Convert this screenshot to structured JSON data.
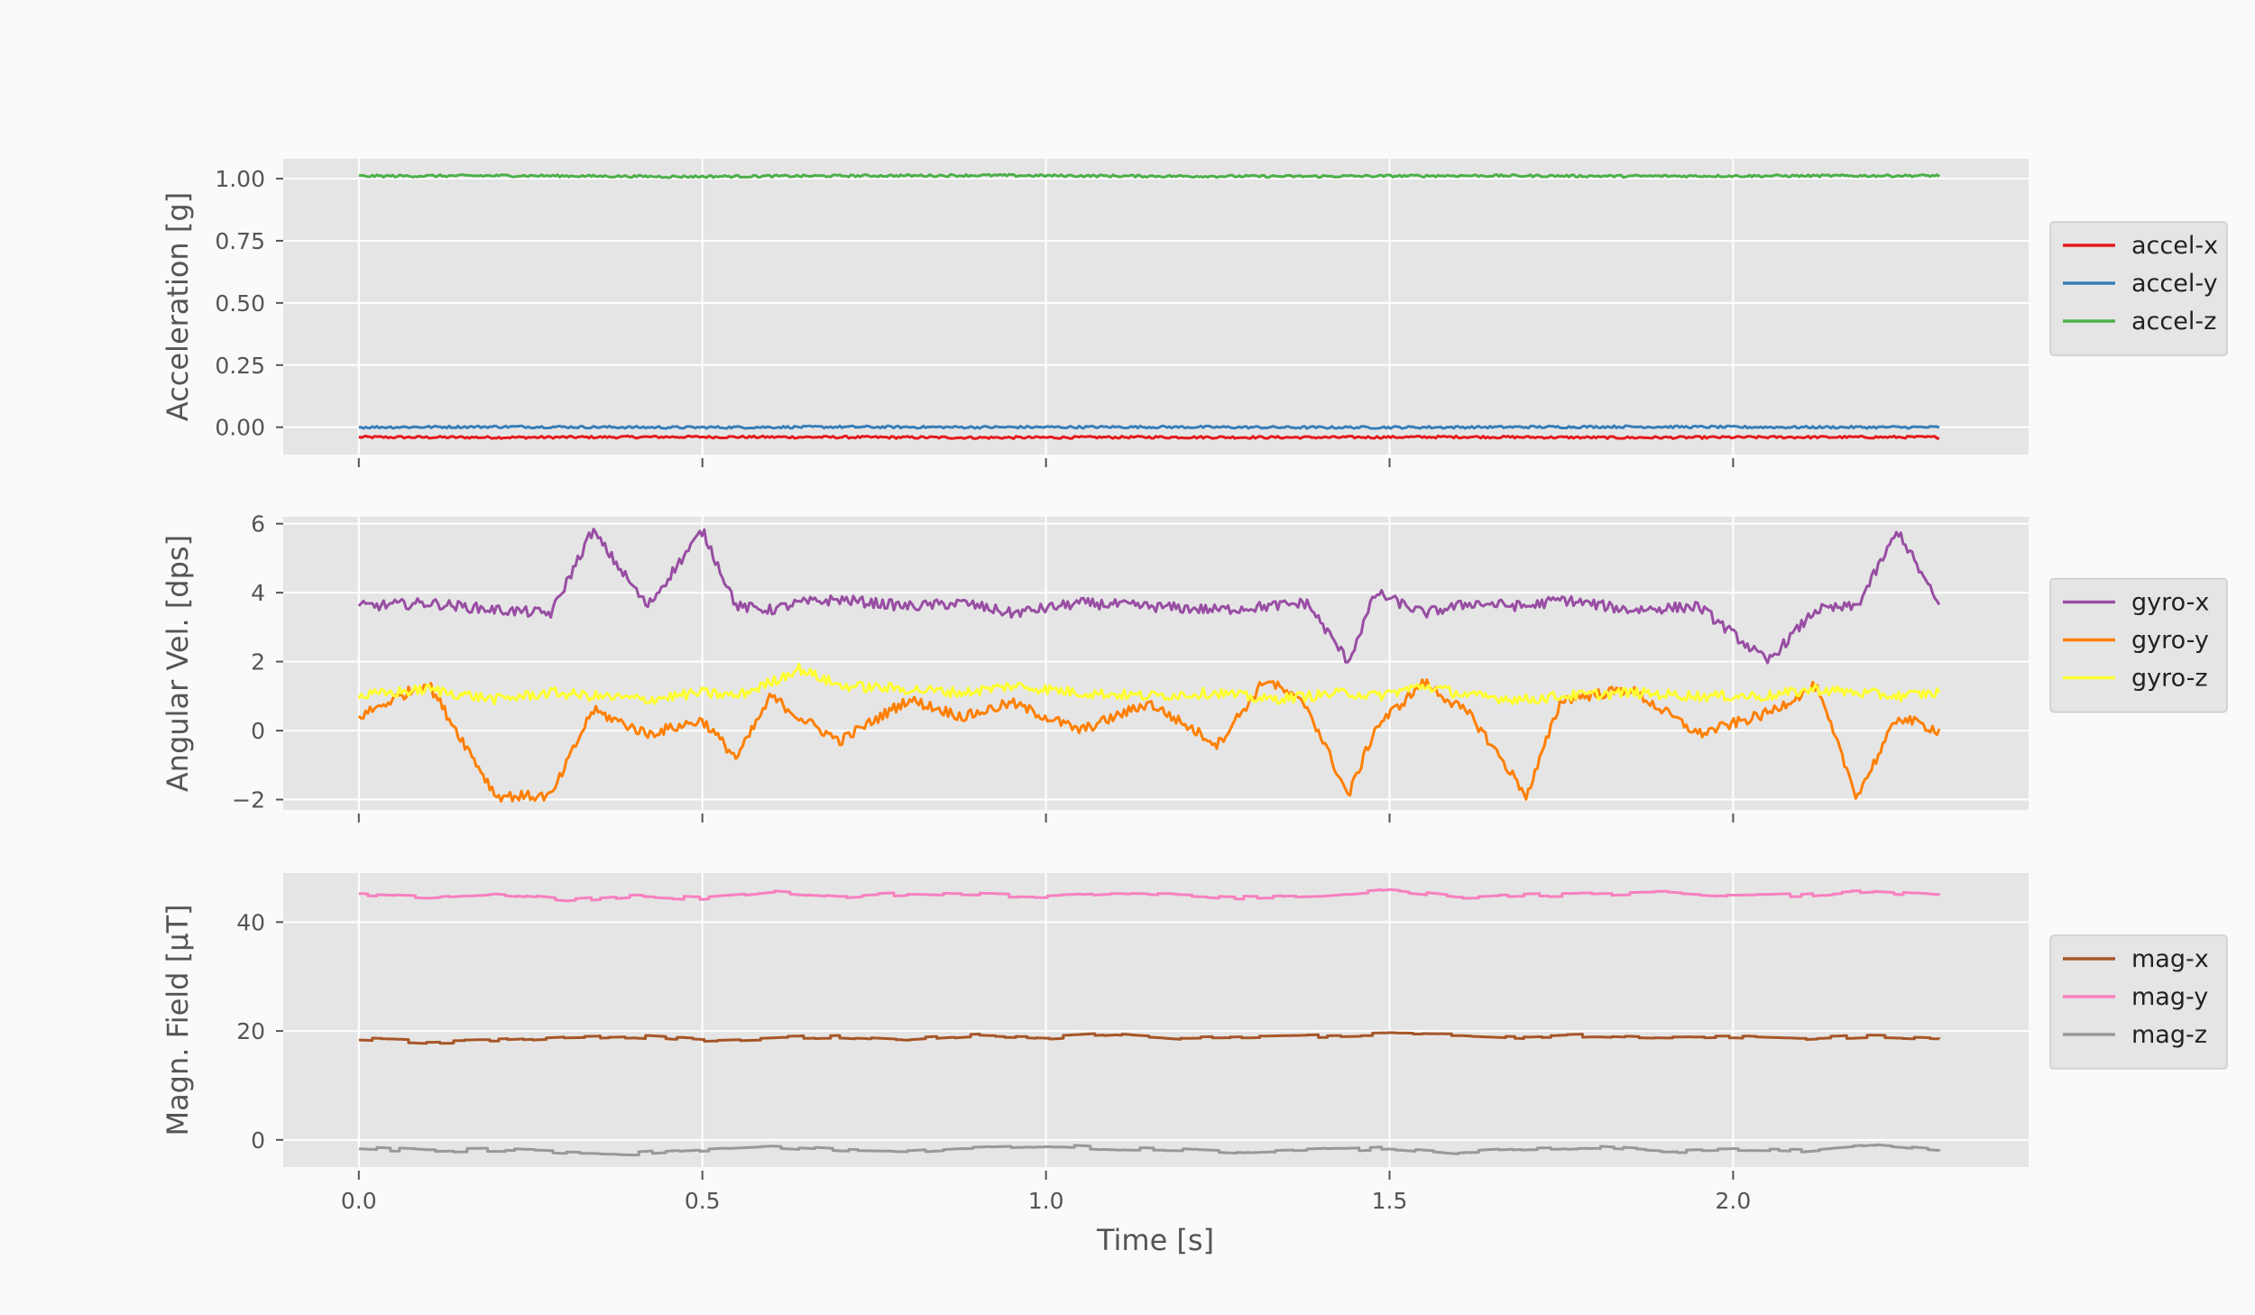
{
  "background": "#f9faf9",
  "plot_background": "#e5e5e5",
  "grid_color": "#ffffff",
  "chart_data": [
    {
      "type": "line",
      "ylabel": "Acceleration [g]",
      "xlim": [
        -0.11,
        2.43
      ],
      "ylim": [
        -0.11,
        1.08
      ],
      "yticks": [
        0.0,
        0.25,
        0.5,
        0.75,
        1.0
      ],
      "ytick_labels": [
        "0.00",
        "0.25",
        "0.50",
        "0.75",
        "1.00"
      ],
      "grid": true,
      "legend_position": "right",
      "x": [
        0.0,
        0.23,
        0.46,
        0.69,
        0.92,
        1.15,
        1.38,
        1.61,
        1.84,
        2.07,
        2.3
      ],
      "series": [
        {
          "name": "accel-x",
          "color": "#e41a1c",
          "values": [
            -0.04,
            -0.041,
            -0.039,
            -0.04,
            -0.042,
            -0.04,
            -0.041,
            -0.039,
            -0.042,
            -0.04,
            -0.04
          ]
        },
        {
          "name": "accel-y",
          "color": "#377eb8",
          "values": [
            0.0,
            0.002,
            -0.001,
            0.001,
            0.0,
            0.001,
            -0.001,
            0.0,
            0.002,
            0.0,
            0.0
          ]
        },
        {
          "name": "accel-z",
          "color": "#4daf4a",
          "values": [
            1.01,
            1.012,
            1.008,
            1.011,
            1.013,
            1.01,
            1.009,
            1.012,
            1.01,
            1.011,
            1.012
          ]
        }
      ]
    },
    {
      "type": "line",
      "ylabel": "Angular Vel. [dps]",
      "xlim": [
        -0.11,
        2.43
      ],
      "ylim": [
        -2.3,
        6.2
      ],
      "yticks": [
        -2,
        0,
        2,
        4,
        6
      ],
      "ytick_labels": [
        "−2",
        "0",
        "2",
        "4",
        "6"
      ],
      "grid": true,
      "legend_position": "right",
      "x": [
        0.0,
        0.1,
        0.2,
        0.28,
        0.34,
        0.42,
        0.5,
        0.55,
        0.6,
        0.64,
        0.7,
        0.8,
        0.88,
        0.95,
        1.05,
        1.15,
        1.25,
        1.32,
        1.38,
        1.44,
        1.48,
        1.55,
        1.62,
        1.7,
        1.75,
        1.85,
        1.95,
        2.05,
        2.12,
        2.18,
        2.24,
        2.3
      ],
      "series": [
        {
          "name": "gyro-x",
          "color": "#984ea3",
          "values": [
            3.6,
            3.7,
            3.5,
            3.4,
            5.8,
            3.6,
            5.8,
            3.6,
            3.5,
            3.7,
            3.8,
            3.6,
            3.7,
            3.4,
            3.7,
            3.6,
            3.5,
            3.6,
            3.7,
            2.0,
            4.0,
            3.4,
            3.7,
            3.6,
            3.8,
            3.5,
            3.6,
            2.0,
            3.5,
            3.6,
            5.8,
            3.6
          ]
        },
        {
          "name": "gyro-y",
          "color": "#ff7f00",
          "values": [
            0.4,
            1.4,
            -1.9,
            -1.9,
            0.6,
            -0.1,
            0.3,
            -0.8,
            1.0,
            0.4,
            -0.3,
            0.9,
            0.4,
            0.8,
            0.0,
            0.8,
            -0.4,
            1.5,
            0.7,
            -1.9,
            0.1,
            1.4,
            0.4,
            -1.9,
            0.9,
            1.2,
            -0.1,
            0.5,
            1.3,
            -1.9,
            0.4,
            0.0
          ]
        },
        {
          "name": "gyro-z",
          "color": "#ffff33",
          "values": [
            1.0,
            1.2,
            0.9,
            1.1,
            1.0,
            0.9,
            1.1,
            1.0,
            1.4,
            1.8,
            1.3,
            1.2,
            1.1,
            1.3,
            1.1,
            1.0,
            1.1,
            0.9,
            1.0,
            1.1,
            1.0,
            1.3,
            1.0,
            0.9,
            1.0,
            1.1,
            1.0,
            1.0,
            1.2,
            1.1,
            1.0,
            1.1
          ]
        }
      ]
    },
    {
      "type": "line",
      "xlabel": "Time [s]",
      "ylabel": "Magn. Field [μT]",
      "xlim": [
        -0.11,
        2.43
      ],
      "ylim": [
        -5,
        49
      ],
      "yticks": [
        0,
        20,
        40
      ],
      "ytick_labels": [
        "0",
        "20",
        "40"
      ],
      "xticks": [
        0.0,
        0.5,
        1.0,
        1.5,
        2.0
      ],
      "xtick_labels": [
        "0.0",
        "0.5",
        "1.0",
        "1.5",
        "2.0"
      ],
      "grid": true,
      "legend_position": "right",
      "x": [
        0.0,
        0.1,
        0.2,
        0.3,
        0.4,
        0.5,
        0.6,
        0.7,
        0.8,
        0.9,
        1.0,
        1.1,
        1.2,
        1.3,
        1.4,
        1.5,
        1.6,
        1.7,
        1.8,
        1.9,
        2.0,
        2.1,
        2.2,
        2.3
      ],
      "series": [
        {
          "name": "mag-x",
          "color": "#a65628",
          "values": [
            18.5,
            18.0,
            18.2,
            18.8,
            19.0,
            18.3,
            18.6,
            19.0,
            18.4,
            19.2,
            18.8,
            19.5,
            18.7,
            18.9,
            19.1,
            19.4,
            19.3,
            18.8,
            19.2,
            18.9,
            19.0,
            18.6,
            19.1,
            18.7
          ]
        },
        {
          "name": "mag-y",
          "color": "#f781bf",
          "values": [
            45.0,
            44.5,
            45.2,
            44.0,
            44.8,
            44.3,
            45.5,
            44.6,
            45.2,
            45.0,
            44.8,
            45.3,
            44.9,
            44.4,
            44.7,
            45.8,
            44.6,
            44.9,
            45.1,
            45.4,
            44.8,
            45.0,
            45.6,
            44.8
          ]
        },
        {
          "name": "mag-z",
          "color": "#999999",
          "values": [
            -1.5,
            -2.0,
            -1.8,
            -2.2,
            -2.5,
            -1.8,
            -1.2,
            -1.9,
            -2.1,
            -1.4,
            -1.0,
            -1.6,
            -1.8,
            -2.3,
            -1.9,
            -1.5,
            -2.4,
            -1.7,
            -1.4,
            -2.1,
            -1.8,
            -2.0,
            -1.0,
            -2.0
          ]
        }
      ]
    }
  ]
}
